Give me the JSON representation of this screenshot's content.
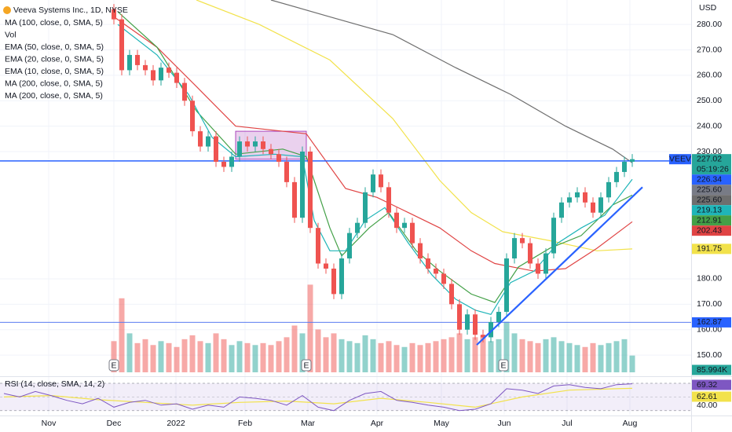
{
  "chart_data": {
    "type": "candlestick",
    "title": "Veeva Systems Inc., 1D, NYSE",
    "currency": "USD",
    "legend": [
      "MA (100, close, 0, SMA, 5)",
      "Vol",
      "EMA (50, close, 0, SMA, 5)",
      "EMA (20, close, 0, SMA, 5)",
      "EMA (10, close, 0, SMA, 5)",
      "MA (200, close, 0, SMA, 5)",
      "MA (200, close, 0, SMA, 5)"
    ],
    "ylim": [
      142,
      289.6
    ],
    "yticks": [
      {
        "value": 150,
        "label": "150.00"
      },
      {
        "value": 160,
        "label": "160.00"
      },
      {
        "value": 170,
        "label": "170.00"
      },
      {
        "value": 180,
        "label": "180.00"
      },
      {
        "value": 230,
        "label": "230.00"
      },
      {
        "value": 240,
        "label": "240.00"
      },
      {
        "value": 250,
        "label": "250.00"
      },
      {
        "value": 260,
        "label": "260.00"
      },
      {
        "value": 270,
        "label": "270.00"
      },
      {
        "value": 280,
        "label": "280.00"
      }
    ],
    "xlim": [
      -14.5,
      73.5
    ],
    "xticks": [
      {
        "value": -8.3,
        "label": "Nov"
      },
      {
        "value": 0,
        "label": "Dec"
      },
      {
        "value": 7.9,
        "label": "2022"
      },
      {
        "value": 16.7,
        "label": "Feb"
      },
      {
        "value": 24.7,
        "label": "Mar"
      },
      {
        "value": 33.5,
        "label": "Apr"
      },
      {
        "value": 41.7,
        "label": "May"
      },
      {
        "value": 49.7,
        "label": "Jun"
      },
      {
        "value": 57.7,
        "label": "Jul"
      },
      {
        "value": 65.7,
        "label": "Aug"
      }
    ],
    "up_color": "#26a69a",
    "down_color": "#ef5350",
    "open": [
      286,
      282,
      262,
      268,
      264,
      262,
      258,
      263,
      261,
      257,
      250,
      238,
      232,
      236,
      226,
      224,
      228,
      234,
      232,
      234,
      231,
      229,
      226,
      218,
      204,
      230,
      200,
      186,
      184,
      174,
      188,
      198,
      202,
      214,
      221,
      216,
      206,
      200,
      202,
      194,
      188,
      184,
      182,
      178,
      170,
      160,
      166,
      158,
      157,
      163,
      167,
      188,
      196,
      194,
      186,
      182,
      190,
      204,
      210,
      212,
      214,
      210,
      206,
      212,
      218,
      222,
      226
    ],
    "high": [
      288,
      284,
      270,
      270,
      266,
      264,
      265,
      265,
      263,
      259,
      252,
      240,
      238,
      238,
      228,
      230,
      236,
      236,
      236,
      236,
      233,
      231,
      228,
      220,
      232,
      232,
      202,
      188,
      186,
      190,
      200,
      204,
      216,
      223,
      223,
      218,
      208,
      204,
      204,
      196,
      190,
      186,
      184,
      180,
      172,
      168,
      168,
      160,
      165,
      169,
      190,
      198,
      198,
      196,
      188,
      192,
      206,
      212,
      214,
      216,
      216,
      212,
      214,
      220,
      224,
      228,
      229.02
    ],
    "low": [
      280,
      260,
      260,
      262,
      260,
      256,
      256,
      259,
      255,
      248,
      236,
      230,
      230,
      224,
      222,
      222,
      226,
      230,
      230,
      229,
      227,
      224,
      216,
      202,
      202,
      198,
      184,
      182,
      172,
      172,
      186,
      196,
      200,
      212,
      214,
      204,
      198,
      198,
      192,
      186,
      182,
      180,
      176,
      168,
      158,
      158,
      156,
      155,
      155,
      161,
      165,
      186,
      192,
      184,
      180,
      180,
      188,
      202,
      208,
      210,
      208,
      204,
      204,
      210,
      216,
      220,
      224
    ],
    "close": [
      282,
      262,
      268,
      264,
      262,
      258,
      263,
      261,
      257,
      250,
      238,
      232,
      236,
      226,
      224,
      228,
      234,
      232,
      234,
      231,
      229,
      226,
      218,
      204,
      230,
      200,
      186,
      184,
      174,
      188,
      198,
      202,
      214,
      221,
      216,
      206,
      200,
      202,
      194,
      188,
      184,
      182,
      178,
      170,
      160,
      166,
      158,
      157,
      163,
      167,
      188,
      196,
      194,
      186,
      182,
      190,
      204,
      210,
      212,
      214,
      210,
      206,
      212,
      218,
      222,
      226,
      227.02
    ],
    "volume_ylim": [
      0,
      500
    ],
    "volume": [
      160,
      380,
      200,
      150,
      170,
      140,
      160,
      150,
      130,
      170,
      190,
      160,
      150,
      200,
      170,
      140,
      160,
      150,
      140,
      150,
      140,
      160,
      180,
      240,
      200,
      450,
      220,
      180,
      200,
      170,
      160,
      150,
      190,
      170,
      150,
      160,
      140,
      130,
      150,
      140,
      150,
      160,
      170,
      180,
      200,
      170,
      180,
      190,
      160,
      170,
      260,
      200,
      170,
      160,
      150,
      170,
      180,
      160,
      150,
      140,
      130,
      150,
      140,
      150,
      160,
      170,
      85.994
    ],
    "series": [
      {
        "color": "#f2e24b",
        "x": [
          10.5,
          18.5,
          27.5,
          35.5,
          41.5,
          45.5,
          49.5,
          55.5,
          61.5,
          66
        ],
        "values": [
          289.6,
          280,
          266,
          243,
          218.6,
          206,
          198.5,
          195,
          191,
          191.75
        ]
      },
      {
        "color": "#e04444",
        "x": [
          0,
          5.5,
          10.5,
          15.5,
          24.5,
          29.5,
          33.5,
          37.5,
          41.5,
          45.5,
          48.5,
          53.5,
          57.5,
          61.5,
          66
        ],
        "values": [
          283,
          271,
          255.6,
          240,
          237,
          215.5,
          212,
          206,
          200,
          191,
          186,
          183,
          184,
          192,
          202.43
        ]
      },
      {
        "color": "#43a047",
        "x": [
          0.5,
          5.5,
          10.5,
          15.5,
          21.5,
          24.5,
          27.5,
          29,
          32.5,
          35,
          38.5,
          41.5,
          45.5,
          48.5,
          51.5,
          55.5,
          59.5,
          63.5,
          66
        ],
        "values": [
          285,
          271,
          246,
          229,
          231,
          228,
          200,
          189,
          200,
          206,
          191,
          183,
          174,
          170.7,
          184.6,
          192,
          197,
          209,
          212.91
        ]
      },
      {
        "color": "#1fb5b8",
        "x": [
          0.5,
          5.5,
          9.5,
          12.5,
          15.5,
          20.5,
          24,
          25.5,
          27.5,
          29.5,
          32,
          34.5,
          37.5,
          40.5,
          43.5,
          46,
          48,
          50.5,
          53.5,
          56.5,
          59.5,
          62.5,
          66
        ],
        "values": [
          280,
          268,
          252.5,
          235.6,
          228,
          229,
          228,
          203,
          191,
          191,
          203,
          208,
          194,
          181.5,
          172,
          167.7,
          166,
          178.5,
          183,
          194,
          200,
          205,
          219.13
        ]
      },
      {
        "color": "#6e6e6e",
        "x": [
          20,
          27.5,
          35.5,
          43.5,
          50.5,
          57.5,
          63.5,
          66
        ],
        "values": [
          289.6,
          283,
          276,
          263,
          252.5,
          240,
          231,
          225.6
        ]
      }
    ],
    "hlines": [
      {
        "value": 226.34,
        "color": "#2962ff"
      },
      {
        "value": 162.87,
        "color": "#5b7cf0"
      }
    ],
    "box": {
      "x": [
        15.5,
        24.5
      ],
      "y": [
        227,
        238
      ]
    },
    "trendline": {
      "x": [
        46.2,
        67.3
      ],
      "y": [
        154,
        216
      ]
    },
    "earnings": [
      {
        "x": 0,
        "label": "E"
      },
      {
        "x": 24.5,
        "label": "E"
      },
      {
        "x": 49.6,
        "label": "E"
      }
    ],
    "symbol": "VEEV",
    "countdown": "05:19:26",
    "price_labels": [
      {
        "value": 227.02,
        "color": "#26a69a"
      },
      {
        "value": 226.34,
        "color": "#2962ff"
      },
      {
        "value": 225.6,
        "label": "225.60",
        "color": "#787b86"
      },
      {
        "value": 225.6,
        "label": "225.60",
        "color": "#6e6e6e"
      },
      {
        "value": 219.13,
        "color": "#1fb5b8"
      },
      {
        "value": 212.91,
        "color": "#43a047"
      },
      {
        "value": 202.43,
        "color": "#e04444"
      },
      {
        "value": 191.75,
        "color": "#f2e24b"
      },
      {
        "value": 162.87,
        "color": "#2962ff"
      }
    ],
    "volume_label": {
      "value": 85.994,
      "label": "85.994K",
      "color": "#26a69a"
    },
    "rsi": {
      "title": "RSI (14, close, SMA, 14, 2)",
      "ylim": [
        24,
        78
      ],
      "levels": [
        70,
        50,
        30
      ],
      "yticks": [
        {
          "value": 40,
          "label": "40.00"
        }
      ],
      "x": [
        -14,
        -12,
        -10,
        -8,
        -6,
        -4,
        -2,
        0,
        2,
        4,
        6,
        8,
        10,
        12,
        14,
        16,
        18,
        20,
        22,
        24,
        26,
        28,
        30,
        32,
        34,
        36,
        38,
        40,
        42,
        44,
        46,
        48,
        50,
        52,
        54,
        56,
        58,
        60,
        62,
        64,
        66
      ],
      "values": [
        55,
        50,
        58,
        52,
        45,
        40,
        48,
        35,
        42,
        45,
        38,
        40,
        32,
        38,
        35,
        50,
        48,
        45,
        38,
        52,
        35,
        30,
        45,
        55,
        58,
        45,
        42,
        38,
        35,
        30,
        32,
        40,
        62,
        60,
        55,
        66,
        68,
        64,
        62,
        68,
        69.32
      ],
      "color": "#7e57c2",
      "sma_x": [
        -14,
        -8,
        -2,
        4,
        10,
        16,
        22,
        28,
        34,
        40,
        46,
        52,
        58,
        64,
        66
      ],
      "sma": [
        50,
        52,
        46,
        42,
        38,
        42,
        44,
        40,
        48,
        42,
        35,
        50,
        60,
        62,
        62.61
      ],
      "sma_color": "#f2e24b"
    }
  }
}
